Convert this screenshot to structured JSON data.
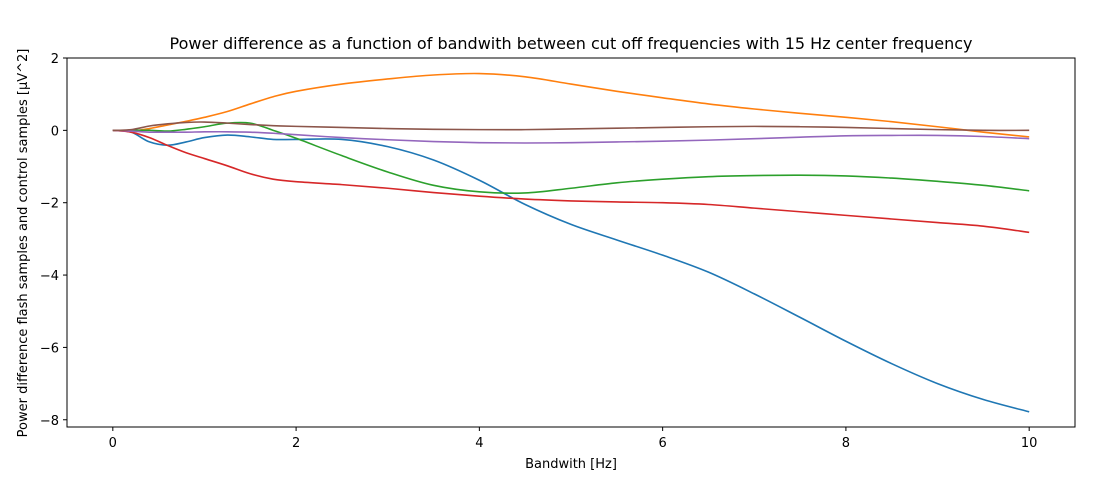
{
  "chart_data": {
    "type": "line",
    "title": "Power difference as a function of bandwith between cut off frequencies with 15 Hz center frequency",
    "xlabel": "Bandwith [Hz]",
    "ylabel": "Power difference flash samples and control samples [µV^2]",
    "xlim": [
      -0.5,
      10.5
    ],
    "ylim": [
      -8.2,
      2.0
    ],
    "xticks": [
      0,
      2,
      4,
      6,
      8,
      10
    ],
    "xtick_labels": [
      "0",
      "2",
      "4",
      "6",
      "8",
      "10"
    ],
    "yticks": [
      2,
      0,
      -2,
      -4,
      -6,
      -8
    ],
    "ytick_labels": [
      "2",
      "0",
      "−2",
      "−4",
      "−6",
      "−8"
    ],
    "grid": false,
    "legend": "none",
    "x": [
      0,
      0.2,
      0.4,
      0.6,
      0.8,
      1.0,
      1.25,
      1.5,
      1.75,
      2.0,
      2.5,
      3.0,
      3.5,
      4.0,
      4.5,
      5.0,
      5.5,
      6.0,
      6.5,
      7.0,
      7.5,
      8.0,
      8.5,
      9.0,
      9.5,
      10.0
    ],
    "series": [
      {
        "color": "#1f77b4",
        "values": [
          0,
          -0.05,
          -0.32,
          -0.41,
          -0.32,
          -0.2,
          -0.13,
          -0.18,
          -0.25,
          -0.25,
          -0.25,
          -0.45,
          -0.82,
          -1.38,
          -2.05,
          -2.6,
          -3.03,
          -3.45,
          -3.92,
          -4.52,
          -5.17,
          -5.83,
          -6.45,
          -7.0,
          -7.44,
          -7.78
        ]
      },
      {
        "color": "#ff7f0e",
        "values": [
          0,
          -0.02,
          0.05,
          0.15,
          0.25,
          0.36,
          0.52,
          0.73,
          0.93,
          1.08,
          1.28,
          1.42,
          1.53,
          1.57,
          1.48,
          1.28,
          1.08,
          0.9,
          0.73,
          0.59,
          0.47,
          0.36,
          0.24,
          0.1,
          -0.05,
          -0.18
        ]
      },
      {
        "color": "#2ca02c",
        "values": [
          0,
          0.0,
          0.0,
          -0.02,
          0.03,
          0.1,
          0.2,
          0.2,
          0.0,
          -0.22,
          -0.7,
          -1.15,
          -1.52,
          -1.7,
          -1.73,
          -1.6,
          -1.45,
          -1.35,
          -1.28,
          -1.25,
          -1.24,
          -1.26,
          -1.32,
          -1.41,
          -1.52,
          -1.67
        ]
      },
      {
        "color": "#d62728",
        "values": [
          0,
          -0.05,
          -0.2,
          -0.42,
          -0.62,
          -0.78,
          -0.98,
          -1.2,
          -1.35,
          -1.42,
          -1.5,
          -1.6,
          -1.72,
          -1.82,
          -1.9,
          -1.95,
          -1.98,
          -2.0,
          -2.05,
          -2.15,
          -2.25,
          -2.35,
          -2.45,
          -2.55,
          -2.65,
          -2.82
        ]
      },
      {
        "color": "#9467bd",
        "values": [
          0,
          -0.02,
          -0.05,
          -0.05,
          -0.05,
          -0.04,
          -0.04,
          -0.05,
          -0.08,
          -0.12,
          -0.2,
          -0.26,
          -0.31,
          -0.34,
          -0.35,
          -0.34,
          -0.32,
          -0.3,
          -0.27,
          -0.23,
          -0.19,
          -0.15,
          -0.14,
          -0.14,
          -0.17,
          -0.23
        ]
      },
      {
        "color": "#8c564b",
        "values": [
          0,
          0.02,
          0.12,
          0.18,
          0.22,
          0.23,
          0.2,
          0.16,
          0.13,
          0.11,
          0.08,
          0.05,
          0.03,
          0.02,
          0.02,
          0.04,
          0.06,
          0.08,
          0.1,
          0.11,
          0.1,
          0.08,
          0.05,
          0.02,
          0.0,
          0.0
        ]
      }
    ]
  }
}
